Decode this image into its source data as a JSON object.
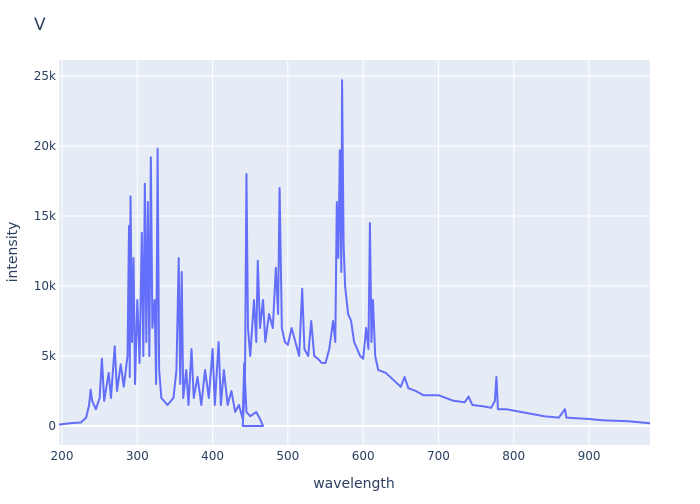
{
  "chart_data": {
    "type": "line",
    "title": "V",
    "x_label": "wavelength",
    "y_label": "intensity",
    "color": "#636efa",
    "grid": true,
    "xlim": [
      196,
      981
    ],
    "ylim": [
      -1357,
      26143
    ],
    "xticks": [
      200,
      300,
      400,
      500,
      600,
      700,
      800,
      900
    ],
    "yticks": [
      0,
      {
        "value": 5000,
        "label": "5k"
      },
      {
        "value": 10000,
        "label": "10k"
      },
      {
        "value": 15000,
        "label": "15k"
      },
      {
        "value": 20000,
        "label": "20k"
      },
      {
        "value": 25000,
        "label": "25k"
      }
    ],
    "x": [
      196,
      210,
      225,
      232,
      236,
      238,
      240,
      245,
      250,
      253,
      256,
      262,
      265,
      270,
      273,
      278,
      282,
      287,
      289,
      290,
      291,
      293,
      295,
      297,
      300,
      303,
      306,
      308,
      310,
      312,
      314,
      316,
      318,
      320,
      323,
      325,
      327,
      329,
      332,
      340,
      348,
      352,
      355,
      357,
      359,
      361,
      365,
      368,
      372,
      375,
      380,
      385,
      390,
      395,
      400,
      403,
      408,
      411,
      415,
      420,
      425,
      430,
      435,
      440,
      442,
      445,
      450,
      458,
      463,
      467,
      440,
      443,
      445,
      447,
      450,
      455,
      458,
      460,
      463,
      467,
      470,
      475,
      480,
      484,
      487,
      489,
      492,
      496,
      500,
      505,
      510,
      515,
      519,
      522,
      527,
      531,
      535,
      540,
      545,
      550,
      555,
      560,
      563,
      565,
      567,
      569,
      571,
      572,
      574,
      576,
      580,
      584,
      588,
      592,
      596,
      600,
      604,
      607,
      609,
      611,
      613,
      616,
      620,
      630,
      640,
      650,
      655,
      660,
      670,
      680,
      700,
      720,
      735,
      740,
      745,
      760,
      770,
      775,
      777,
      779,
      790,
      800,
      810,
      820,
      840,
      860,
      868,
      870,
      900,
      920,
      950,
      981
    ],
    "values": [
      100,
      200,
      250,
      600,
      1500,
      2600,
      1800,
      1200,
      2000,
      4800,
      1800,
      3800,
      2000,
      5700,
      2500,
      4400,
      2800,
      5000,
      14300,
      3500,
      16400,
      6000,
      12000,
      3000,
      9000,
      4500,
      13800,
      5000,
      17300,
      6000,
      16000,
      5000,
      19200,
      7000,
      9000,
      3000,
      19800,
      4000,
      2000,
      1500,
      2000,
      4000,
      12000,
      3000,
      11000,
      2000,
      4000,
      1500,
      5500,
      2000,
      3500,
      1500,
      4000,
      2000,
      5500,
      1500,
      6000,
      1500,
      4000,
      1500,
      2500,
      1000,
      1500,
      500,
      4500,
      1000,
      700,
      1000,
      500,
      0,
      0,
      3000,
      18000,
      7000,
      5000,
      9000,
      6000,
      11800,
      7000,
      9000,
      6000,
      8000,
      7000,
      11300,
      8000,
      17000,
      7000,
      6000,
      5800,
      7000,
      6000,
      5000,
      9800,
      5500,
      5000,
      7500,
      5000,
      4800,
      4500,
      4500,
      5500,
      7500,
      6000,
      16000,
      12000,
      19700,
      11000,
      24700,
      13000,
      10000,
      8000,
      7500,
      6000,
      5500,
      5000,
      4800,
      7000,
      5500,
      14500,
      6000,
      9000,
      5000,
      4000,
      3800,
      3300,
      2800,
      3500,
      2700,
      2500,
      2200,
      2200,
      1800,
      1700,
      2100,
      1500,
      1400,
      1300,
      1800,
      3500,
      1200,
      1200,
      1100,
      1000,
      900,
      700,
      600,
      1200,
      600,
      500,
      400,
      350,
      200
    ]
  }
}
